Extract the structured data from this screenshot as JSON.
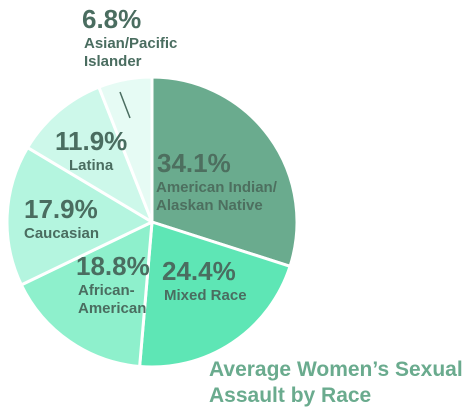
{
  "chart_data": {
    "type": "pie",
    "title": "Average Women’s Sexual Assault by Race",
    "title_lines": [
      "Average Women’s Sexual",
      "Assault by Race"
    ],
    "slices": [
      {
        "pct_text": "34.1%",
        "label_lines": [
          "American Indian/",
          "Alaskan Native"
        ],
        "value": 34.1,
        "color": "#6aab8e",
        "text_color": "#4d6f5f"
      },
      {
        "pct_text": "24.4%",
        "label_lines": [
          "Mixed Race"
        ],
        "value": 24.4,
        "color": "#5ee6b5",
        "text_color": "#4a6d60"
      },
      {
        "pct_text": "18.8%",
        "label_lines": [
          "African-",
          "American"
        ],
        "value": 18.8,
        "color": "#8ef0cc",
        "text_color": "#4a6d60"
      },
      {
        "pct_text": "17.9%",
        "label_lines": [
          "Caucasian"
        ],
        "value": 17.9,
        "color": "#b4f5df",
        "text_color": "#4a6d60"
      },
      {
        "pct_text": "11.9%",
        "label_lines": [
          "Latina"
        ],
        "value": 11.9,
        "color": "#cdf8ea",
        "text_color": "#4a6d60"
      },
      {
        "pct_text": "6.8%",
        "label_lines": [
          "Asian/Pacific",
          "Islander"
        ],
        "value": 6.8,
        "color": "#e6fbf4",
        "text_color": "#4a6d60"
      }
    ],
    "title_color": "#6aab8e",
    "background": "#ffffff"
  }
}
